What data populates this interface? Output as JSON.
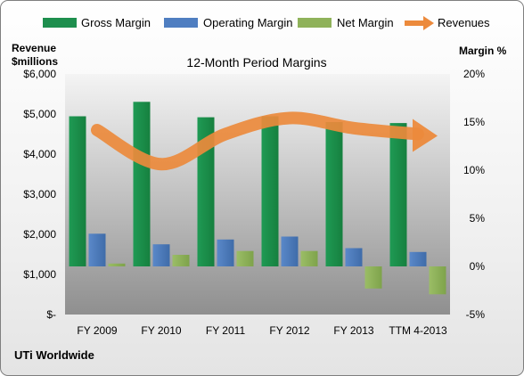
{
  "chart_data": {
    "type": "bar",
    "title": "12-Month Period Margins",
    "categories": [
      "FY 2009",
      "FY 2010",
      "FY 2011",
      "FY 2012",
      "FY 2013",
      "TTM 4-2013"
    ],
    "series": [
      {
        "name": "Gross Margin",
        "axis": "right",
        "values": [
          15.6,
          17.1,
          15.5,
          15.6,
          15.0,
          14.9
        ],
        "color": "#1e8f4e"
      },
      {
        "name": "Operating Margin",
        "axis": "right",
        "values": [
          3.4,
          2.3,
          2.8,
          3.1,
          1.9,
          1.5
        ],
        "color": "#4f7ec1"
      },
      {
        "name": "Net Margin",
        "axis": "right",
        "values": [
          0.3,
          1.2,
          1.6,
          1.6,
          -2.3,
          -2.9
        ],
        "color": "#8fb25a"
      },
      {
        "name": "Revenues",
        "axis": "left",
        "type": "line",
        "values": [
          4600,
          3750,
          4500,
          4900,
          4650,
          4500
        ],
        "color": "#ec8a3c"
      }
    ],
    "y_left": {
      "label_line1": "Revenue",
      "label_line2": "$millions",
      "ticks": [
        "$6,000",
        "$5,000",
        "$4,000",
        "$3,000",
        "$2,000",
        "$1,000",
        "$-"
      ],
      "ylim": [
        0,
        6000
      ]
    },
    "y_right": {
      "label": "Margin %",
      "ticks": [
        "20%",
        "15%",
        "10%",
        "5%",
        "0%",
        "-5%"
      ],
      "ylim": [
        -5,
        20
      ]
    },
    "legend_position": "top",
    "grid": false
  },
  "footer": {
    "company": "UTi Worldwide"
  }
}
